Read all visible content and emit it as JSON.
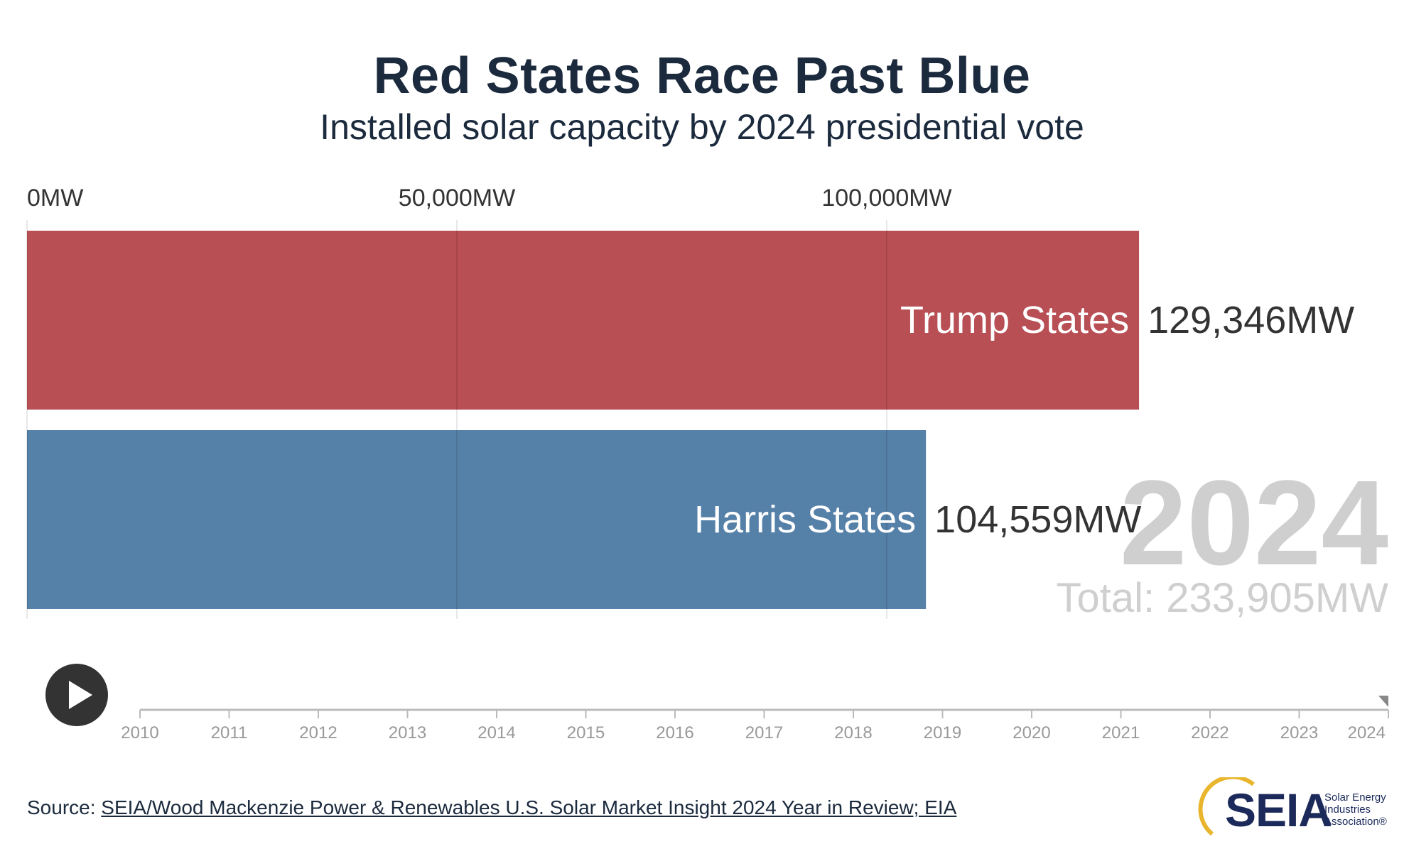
{
  "header": {
    "title": "Red States Race Past Blue",
    "subtitle": "Installed solar capacity by 2024 presidential vote"
  },
  "chart_data": {
    "type": "bar",
    "orientation": "horizontal",
    "title": "Red States Race Past Blue",
    "subtitle": "Installed solar capacity by 2024 presidential vote",
    "categories": [
      "Trump States",
      "Harris States"
    ],
    "values": [
      129346,
      104559
    ],
    "value_labels": [
      "129,346MW",
      "104,559MW"
    ],
    "colors": [
      "#b84f54",
      "#5580a8"
    ],
    "xlim": [
      0,
      150000
    ],
    "x_ticks": [
      0,
      50000,
      100000
    ],
    "x_tick_labels": [
      "0MW",
      "50,000MW",
      "100,000MW"
    ],
    "grid": true,
    "year": "2024",
    "total_label": "Total: 233,905MW"
  },
  "timeline": {
    "years": [
      "2010",
      "2011",
      "2012",
      "2013",
      "2014",
      "2015",
      "2016",
      "2017",
      "2018",
      "2019",
      "2020",
      "2021",
      "2022",
      "2023",
      "2024"
    ],
    "current": "2024",
    "play_label": "Play"
  },
  "footer": {
    "source_prefix": "Source: ",
    "source_link": "SEIA/Wood Mackenzie Power & Renewables U.S. Solar Market Insight 2024 Year in Review; EIA"
  },
  "logo": {
    "name": "SEIA",
    "tagline_1": "Solar Energy",
    "tagline_2": "Industries",
    "tagline_3": "Association®"
  },
  "colors": {
    "text": "#1b2a3d",
    "grid": "#e2e2e2",
    "watermark": "#cfcfcf",
    "logo_accent": "#e8b52c"
  }
}
